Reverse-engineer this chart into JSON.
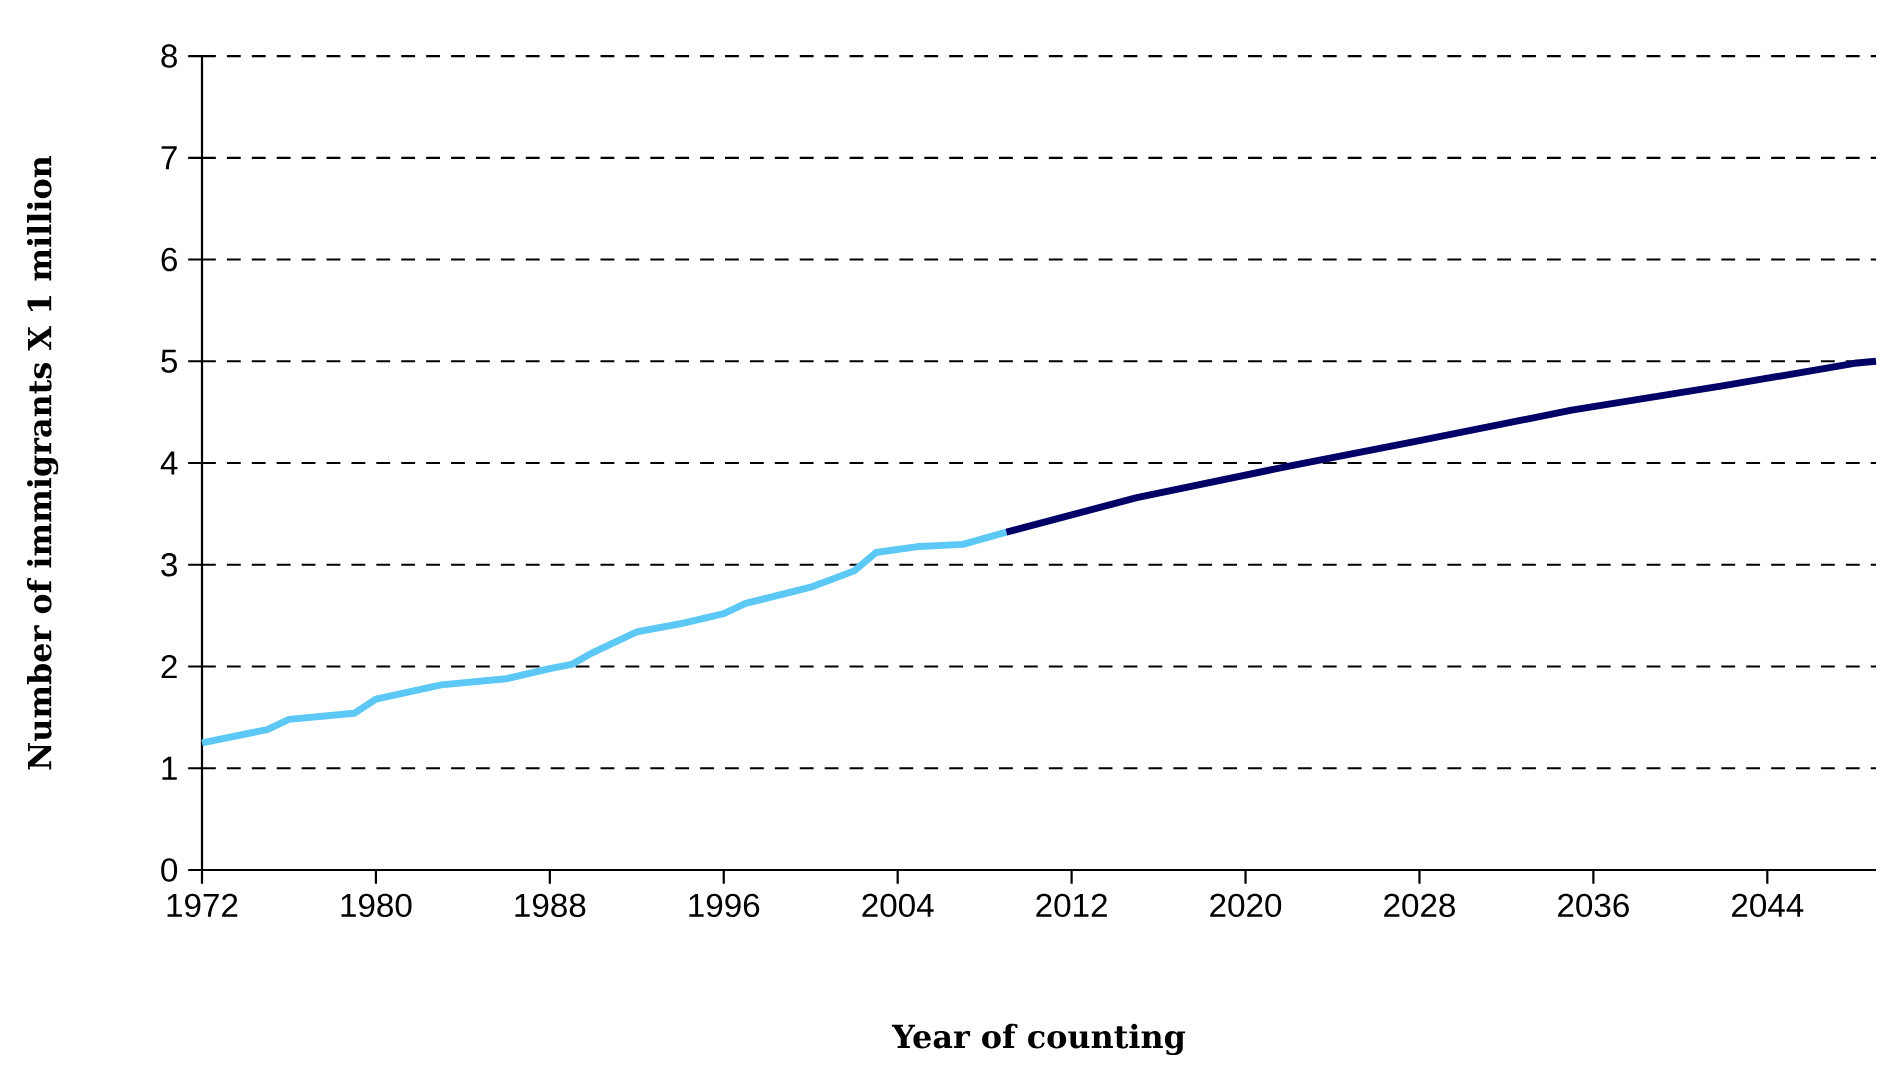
{
  "chart_data": {
    "type": "line",
    "xlabel": "Year of counting",
    "ylabel": "Number of immigrants X 1 million",
    "xlim": [
      1972,
      2049
    ],
    "ylim": [
      0,
      8
    ],
    "xticks": [
      1972,
      1980,
      1988,
      1996,
      2004,
      2012,
      2020,
      2028,
      2036,
      2044
    ],
    "yticks": [
      0,
      1,
      2,
      3,
      4,
      5,
      6,
      7,
      8
    ],
    "grid": "y",
    "marker": "none",
    "line_style": "solid",
    "series": [
      {
        "color": "#5bc8f5",
        "x": [
          1972,
          1975,
          1976,
          1979,
          1980,
          1983,
          1986,
          1988,
          1989,
          1990,
          1992,
          1994,
          1996,
          1997,
          2000,
          2002,
          2003,
          2005,
          2007,
          2009
        ],
        "values": [
          1.25,
          1.38,
          1.48,
          1.54,
          1.68,
          1.82,
          1.88,
          1.98,
          2.02,
          2.14,
          2.34,
          2.42,
          2.52,
          2.62,
          2.78,
          2.94,
          3.12,
          3.18,
          3.2,
          3.32
        ]
      },
      {
        "color": "#000066",
        "x": [
          2009,
          2015,
          2022,
          2028,
          2035,
          2042,
          2048,
          2049
        ],
        "values": [
          3.32,
          3.66,
          3.97,
          4.22,
          4.52,
          4.76,
          4.98,
          5.0
        ]
      }
    ]
  }
}
